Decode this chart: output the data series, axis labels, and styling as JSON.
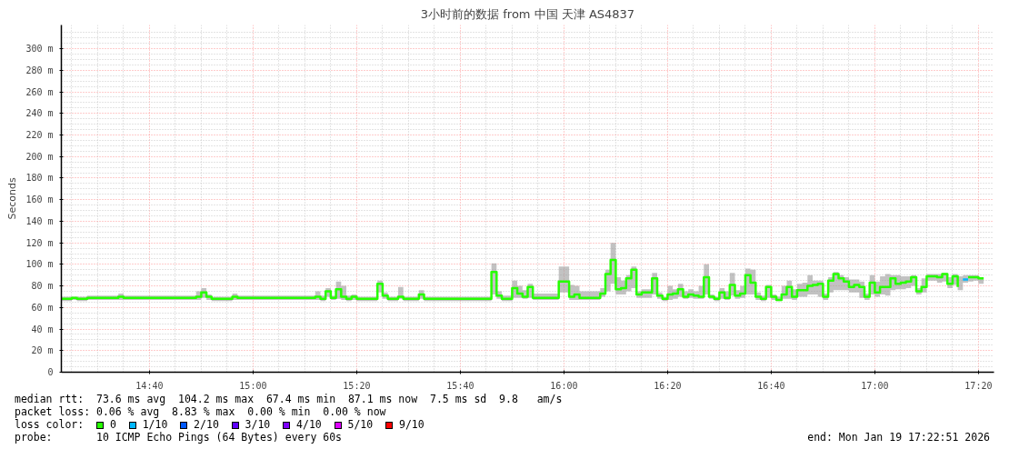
{
  "chart_data": {
    "type": "step",
    "title": "3小时前的数据 from 中国 天津 AS4837",
    "ylabel": "Seconds",
    "xlim": [
      "2026-01-19T14:23",
      "2026-01-19T17:23"
    ],
    "xticks": [
      {
        "value": "2026-01-19T14:40",
        "label": "14:40"
      },
      {
        "value": "2026-01-19T15:00",
        "label": "15:00"
      },
      {
        "value": "2026-01-19T15:20",
        "label": "15:20"
      },
      {
        "value": "2026-01-19T15:40",
        "label": "15:40"
      },
      {
        "value": "2026-01-19T16:00",
        "label": "16:00"
      },
      {
        "value": "2026-01-19T16:20",
        "label": "16:20"
      },
      {
        "value": "2026-01-19T16:40",
        "label": "16:40"
      },
      {
        "value": "2026-01-19T17:00",
        "label": "17:00"
      },
      {
        "value": "2026-01-19T17:20",
        "label": "17:20"
      }
    ],
    "ylim": [
      0,
      322
    ],
    "yticks": [
      0,
      {
        "value": 20,
        "label": "20 m"
      },
      {
        "value": 40,
        "label": "40 m"
      },
      {
        "value": 60,
        "label": "60 m"
      },
      {
        "value": 80,
        "label": "80 m"
      },
      {
        "value": 100,
        "label": "100 m"
      },
      {
        "value": 120,
        "label": "120 m"
      },
      {
        "value": 140,
        "label": "140 m"
      },
      {
        "value": 160,
        "label": "160 m"
      },
      {
        "value": 180,
        "label": "180 m"
      },
      {
        "value": 200,
        "label": "200 m"
      },
      {
        "value": 220,
        "label": "220 m"
      },
      {
        "value": 240,
        "label": "240 m"
      },
      {
        "value": 260,
        "label": "260 m"
      },
      {
        "value": 280,
        "label": "280 m"
      },
      {
        "value": 300,
        "label": "300 m"
      }
    ],
    "grid": true,
    "legend": "bottom",
    "legend_title": "loss color:",
    "annotations": [
      "median rtt:  73.6 ms avg  104.2 ms max  67.4 ms min  87.1 ms now  7.5 ms sd  9.8   am/s",
      "packet loss: 0.06 % avg  8.83 % max  0.00 % min  0.00 % now",
      "probe:       10 ICMP Echo Pings (64 Bytes) every 60s",
      "end: Mon Jan 19 17:22:51 2026"
    ],
    "series": [
      {
        "name": "0",
        "color": "#26ff00",
        "x": [
          "2026-01-19T14:23",
          "2026-01-19T14:25",
          "2026-01-19T14:26",
          "2026-01-19T14:28",
          "2026-01-19T14:34",
          "2026-01-19T14:35",
          "2026-01-19T14:49",
          "2026-01-19T14:50",
          "2026-01-19T14:51",
          "2026-01-19T14:52",
          "2026-01-19T14:56",
          "2026-01-19T14:57",
          "2026-01-19T15:12",
          "2026-01-19T15:13",
          "2026-01-19T15:14",
          "2026-01-19T15:15",
          "2026-01-19T15:16",
          "2026-01-19T15:17",
          "2026-01-19T15:18",
          "2026-01-19T15:19",
          "2026-01-19T15:20",
          "2026-01-19T15:24",
          "2026-01-19T15:25",
          "2026-01-19T15:26",
          "2026-01-19T15:28",
          "2026-01-19T15:29",
          "2026-01-19T15:32",
          "2026-01-19T15:33",
          "2026-01-19T15:46",
          "2026-01-19T15:47",
          "2026-01-19T15:48",
          "2026-01-19T15:50",
          "2026-01-19T15:51",
          "2026-01-19T15:52",
          "2026-01-19T15:53",
          "2026-01-19T15:54",
          "2026-01-19T15:59",
          "2026-01-19T16:01",
          "2026-01-19T16:02",
          "2026-01-19T16:03",
          "2026-01-19T16:07",
          "2026-01-19T16:08",
          "2026-01-19T16:09",
          "2026-01-19T16:10",
          "2026-01-19T16:11",
          "2026-01-19T16:12",
          "2026-01-19T16:13",
          "2026-01-19T16:14",
          "2026-01-19T16:15",
          "2026-01-19T16:17",
          "2026-01-19T16:18",
          "2026-01-19T16:19",
          "2026-01-19T16:20",
          "2026-01-19T16:21",
          "2026-01-19T16:22",
          "2026-01-19T16:23",
          "2026-01-19T16:24",
          "2026-01-19T16:25",
          "2026-01-19T16:26",
          "2026-01-19T16:27",
          "2026-01-19T16:28",
          "2026-01-19T16:29",
          "2026-01-19T16:30",
          "2026-01-19T16:31",
          "2026-01-19T16:32",
          "2026-01-19T16:33",
          "2026-01-19T16:34",
          "2026-01-19T16:35",
          "2026-01-19T16:36",
          "2026-01-19T16:37",
          "2026-01-19T16:38",
          "2026-01-19T16:39",
          "2026-01-19T16:40",
          "2026-01-19T16:41",
          "2026-01-19T16:42",
          "2026-01-19T16:43",
          "2026-01-19T16:44",
          "2026-01-19T16:45",
          "2026-01-19T16:46",
          "2026-01-19T16:47",
          "2026-01-19T16:48",
          "2026-01-19T16:49",
          "2026-01-19T16:50",
          "2026-01-19T16:51",
          "2026-01-19T16:52",
          "2026-01-19T16:53",
          "2026-01-19T16:54",
          "2026-01-19T16:55",
          "2026-01-19T16:56",
          "2026-01-19T16:57",
          "2026-01-19T16:58",
          "2026-01-19T16:59",
          "2026-01-19T17:00",
          "2026-01-19T17:01",
          "2026-01-19T17:02",
          "2026-01-19T17:03",
          "2026-01-19T17:04",
          "2026-01-19T17:05",
          "2026-01-19T17:06",
          "2026-01-19T17:07",
          "2026-01-19T17:08",
          "2026-01-19T17:09",
          "2026-01-19T17:10",
          "2026-01-19T17:12",
          "2026-01-19T17:13",
          "2026-01-19T17:14",
          "2026-01-19T17:15",
          "2026-01-19T17:16",
          "2026-01-19T17:17",
          "2026-01-19T17:18",
          "2026-01-19T17:19",
          "2026-01-19T17:20",
          "2026-01-19T17:21"
        ],
        "values": [
          68,
          69,
          68,
          69,
          70,
          69,
          70,
          74,
          70,
          68,
          70,
          69,
          70,
          68,
          75,
          69,
          77,
          70,
          68,
          70,
          68,
          82,
          71,
          68,
          70,
          68,
          72,
          68,
          93,
          71,
          68,
          78,
          73,
          70,
          79,
          69,
          84,
          70,
          72,
          69,
          73,
          91,
          104,
          77,
          78,
          87,
          95,
          72,
          74,
          87,
          71,
          68,
          72,
          73,
          77,
          70,
          72,
          71,
          70,
          88,
          70,
          68,
          74,
          69,
          81,
          71,
          73,
          90,
          83,
          70,
          68,
          79,
          70,
          67,
          72,
          79,
          70,
          76,
          76,
          80,
          81,
          82,
          70,
          85,
          91,
          87,
          84,
          79,
          81,
          79,
          70,
          83,
          74,
          79,
          79,
          87,
          82,
          83,
          84,
          88,
          75,
          79,
          89,
          88,
          91,
          82,
          89,
          79,
          null,
          88,
          88,
          87,
          87
        ],
        "lower": [
          66,
          67,
          66,
          67,
          67,
          67,
          67,
          69,
          67,
          66,
          67,
          67,
          67,
          66,
          70,
          67,
          68,
          67,
          66,
          67,
          66,
          74,
          68,
          66,
          68,
          66,
          68,
          66,
          72,
          68,
          66,
          69,
          69,
          68,
          69,
          67,
          74,
          67,
          67,
          67,
          70,
          75,
          82,
          72,
          72,
          75,
          78,
          69,
          69,
          72,
          68,
          66,
          67,
          68,
          70,
          68,
          69,
          68,
          68,
          72,
          68,
          66,
          68,
          67,
          71,
          68,
          69,
          72,
          72,
          67,
          66,
          69,
          67,
          66,
          68,
          68,
          67,
          70,
          70,
          72,
          72,
          70,
          67,
          74,
          76,
          76,
          76,
          74,
          74,
          69,
          67,
          72,
          70,
          72,
          71,
          76,
          77,
          77,
          78,
          80,
          72,
          74,
          85,
          83,
          84,
          78,
          81,
          76,
          83,
          84,
          85,
          82,
          82
        ],
        "upper": [
          70,
          70,
          70,
          71,
          73,
          71,
          75,
          78,
          72,
          70,
          73,
          71,
          75,
          71,
          78,
          71,
          84,
          80,
          71,
          72,
          70,
          85,
          74,
          70,
          79,
          70,
          76,
          70,
          101,
          75,
          71,
          85,
          80,
          76,
          82,
          73,
          98,
          81,
          80,
          75,
          78,
          95,
          120,
          88,
          85,
          90,
          98,
          75,
          77,
          92,
          74,
          70,
          80,
          77,
          82,
          75,
          77,
          75,
          80,
          100,
          72,
          70,
          78,
          75,
          92,
          76,
          80,
          96,
          95,
          74,
          71,
          81,
          72,
          70,
          80,
          85,
          77,
          82,
          83,
          90,
          85,
          85,
          73,
          88,
          93,
          90,
          88,
          86,
          86,
          84,
          73,
          90,
          84,
          89,
          91,
          90,
          90,
          89,
          89,
          90,
          78,
          87,
          91,
          91,
          92,
          88,
          91,
          89,
          90,
          90,
          90,
          88,
          88
        ]
      },
      {
        "name": "1/10",
        "color": "#00b8ff",
        "x": [
          "2026-01-19T17:17",
          "2026-01-19T17:18"
        ],
        "values": [
          86,
          86
        ]
      },
      {
        "name": "2/10",
        "color": "#0059ff"
      },
      {
        "name": "3/10",
        "color": "#5e00ff"
      },
      {
        "name": "4/10",
        "color": "#7e00ff"
      },
      {
        "name": "5/10",
        "color": "#dd00ff"
      },
      {
        "name": "9/10",
        "color": "#ff0000"
      }
    ]
  }
}
